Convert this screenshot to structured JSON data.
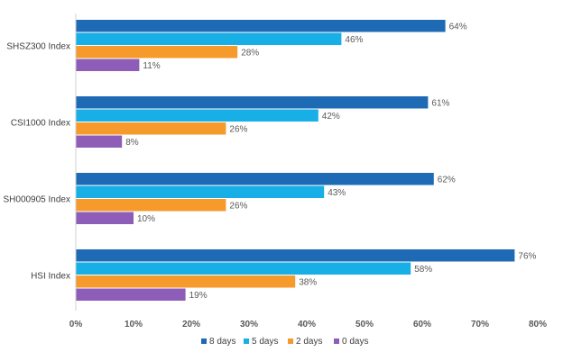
{
  "chart_data": {
    "type": "bar",
    "orientation": "horizontal",
    "categories": [
      "SHSZ300 Index",
      "CSI1000 Index",
      "SH000905 Index",
      "HSI Index"
    ],
    "series": [
      {
        "name": "8 days",
        "color": "#1f6ab4",
        "values": [
          64,
          61,
          62,
          76
        ]
      },
      {
        "name": "5 days",
        "color": "#18aee6",
        "values": [
          46,
          42,
          43,
          58
        ]
      },
      {
        "name": "2 days",
        "color": "#f59a2b",
        "values": [
          28,
          26,
          26,
          38
        ]
      },
      {
        "name": "0 days",
        "color": "#8e5db8",
        "values": [
          11,
          8,
          10,
          19
        ]
      }
    ],
    "value_suffix": "%",
    "xlim": [
      0,
      80
    ],
    "xticks": [
      0,
      10,
      20,
      30,
      40,
      50,
      60,
      70,
      80
    ],
    "xtick_labels": [
      "0%",
      "10%",
      "20%",
      "30%",
      "40%",
      "50%",
      "60%",
      "70%",
      "80%"
    ],
    "grid": false,
    "legend_position": "bottom"
  }
}
